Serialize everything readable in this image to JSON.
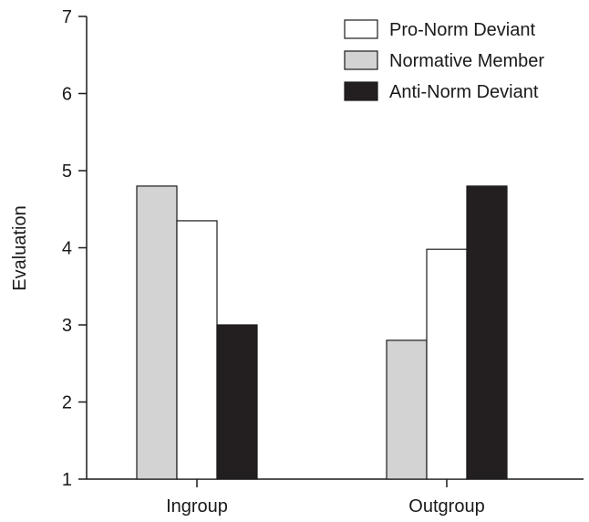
{
  "chart_data": {
    "type": "bar",
    "categories": [
      "Ingroup",
      "Outgroup"
    ],
    "ylabel": "Evaluation",
    "xlabel": "",
    "ylim": [
      1,
      7
    ],
    "yticks": [
      1,
      2,
      3,
      4,
      5,
      6,
      7
    ],
    "grid": false,
    "legend_position": "top-right",
    "bar_order": [
      "Normative Member",
      "Pro-Norm Deviant",
      "Anti-Norm Deviant"
    ],
    "legend_order": [
      "Pro-Norm Deviant",
      "Normative Member",
      "Anti-Norm Deviant"
    ],
    "series": [
      {
        "name": "Pro-Norm Deviant",
        "values": [
          4.35,
          3.98
        ],
        "color": "#ffffff"
      },
      {
        "name": "Normative Member",
        "values": [
          4.8,
          2.8
        ],
        "color": "#d3d3d3"
      },
      {
        "name": "Anti-Norm Deviant",
        "values": [
          3.0,
          4.8
        ],
        "color": "#231f20"
      }
    ]
  }
}
